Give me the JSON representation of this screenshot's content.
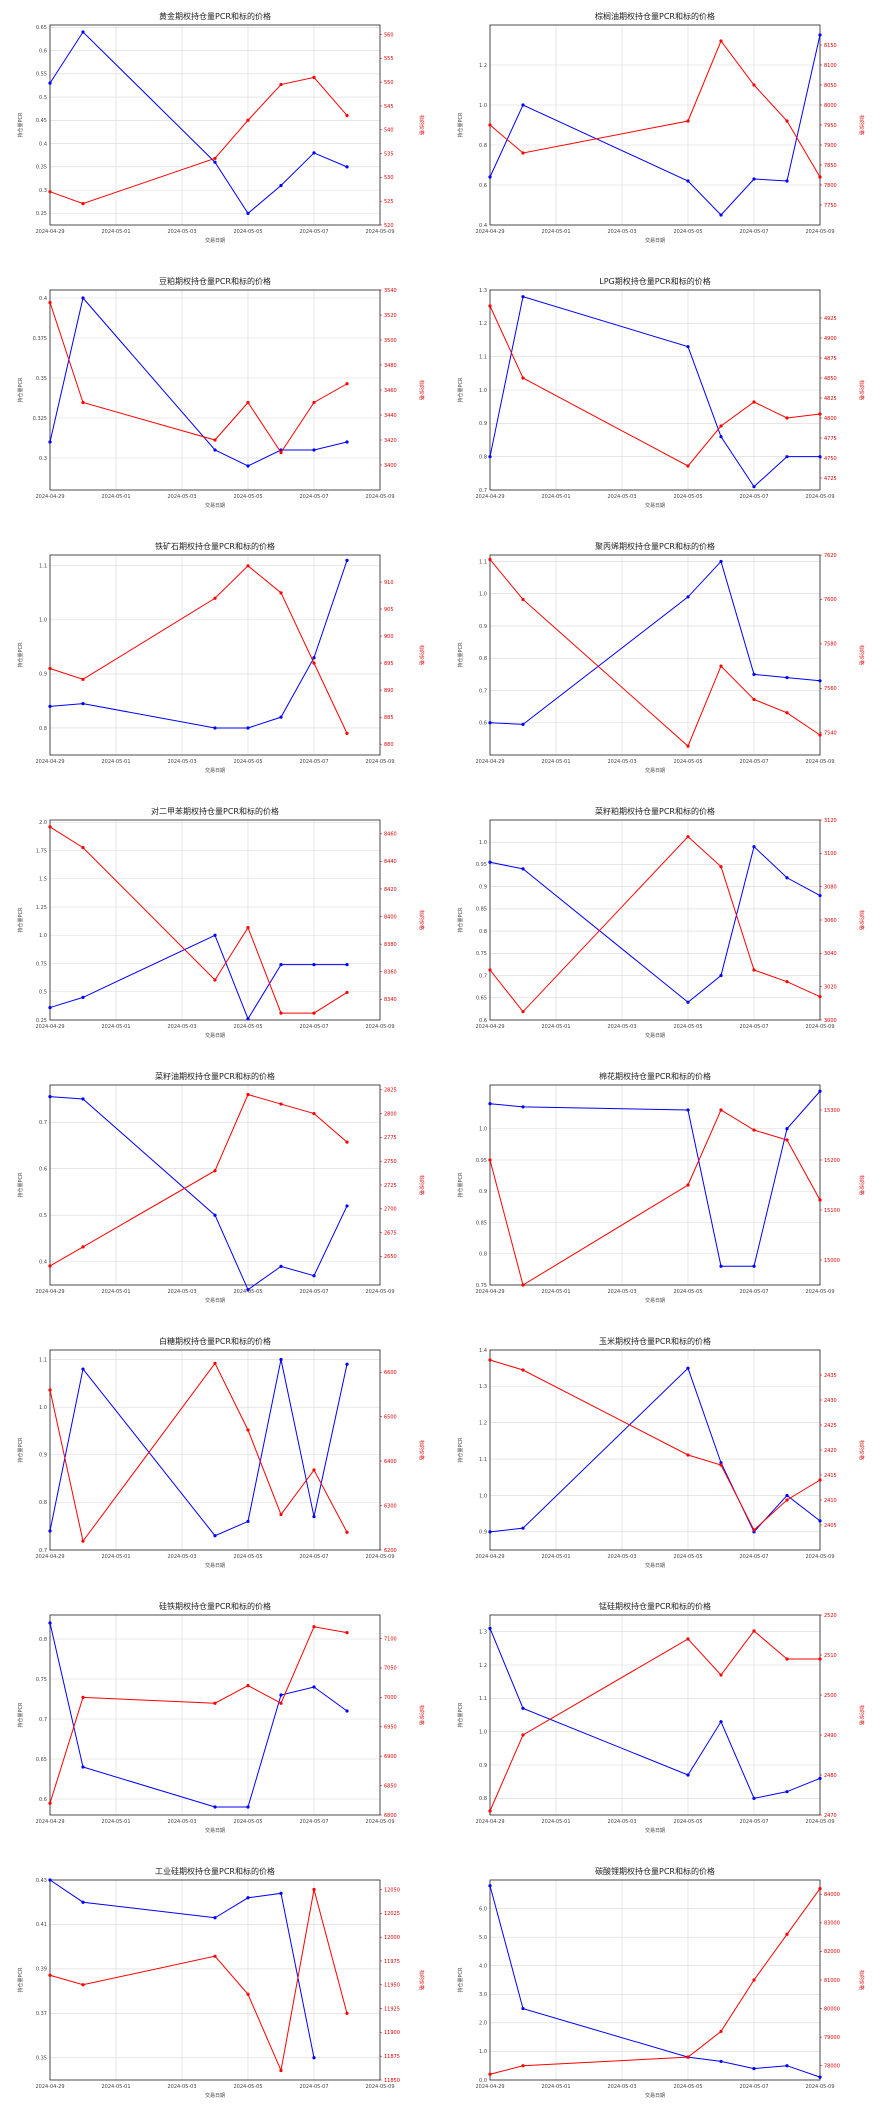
{
  "colors": {
    "left_series": "#0000ff",
    "right_series": "#ff0000",
    "grid": "#d8d8d8"
  },
  "x_ticks": [
    "2024-04-29",
    "2024-05-01",
    "2024-05-03",
    "2024-05-05",
    "2024-05-07",
    "2024-05-09"
  ],
  "chart_data": [
    {
      "type": "line",
      "title": "黄金期权持仓量PCR和标的价格",
      "xlabel": "交易日期",
      "ylabel": "持仓量PCR",
      "y2label": "标的价格",
      "x": [
        0,
        1,
        5,
        6,
        7,
        8,
        9
      ],
      "ylim": [
        0.225,
        0.655
      ],
      "yticks": [
        0.25,
        0.3,
        0.35,
        0.4,
        0.45,
        0.5,
        0.55,
        0.6,
        0.65
      ],
      "series_left": [
        0.53,
        0.64,
        0.36,
        0.25,
        0.31,
        0.38,
        0.35
      ],
      "y2lim": [
        520,
        562
      ],
      "y2ticks": [
        520,
        525,
        530,
        535,
        540,
        545,
        550,
        555,
        560
      ],
      "series_right": [
        527,
        524.5,
        534,
        542,
        549.5,
        551,
        543
      ]
    },
    {
      "type": "line",
      "title": "棕榈油期权持仓量PCR和标的价格",
      "xlabel": "交易日期",
      "ylabel": "持仓量PCR",
      "y2label": "标的价格",
      "x": [
        0,
        1,
        6,
        7,
        8,
        9,
        10
      ],
      "ylim": [
        0.4,
        1.4
      ],
      "yticks": [
        0.4,
        0.6,
        0.8,
        1.0,
        1.2
      ],
      "series_left": [
        0.64,
        1.0,
        0.62,
        0.45,
        0.63,
        0.62,
        1.35
      ],
      "y2lim": [
        7700,
        8200
      ],
      "y2ticks": [
        7750,
        7800,
        7850,
        7900,
        7950,
        8000,
        8050,
        8100,
        8150
      ],
      "series_right": [
        7950,
        7880,
        7960,
        8160,
        8050,
        7960,
        7820
      ]
    },
    {
      "type": "line",
      "title": "豆粕期权持仓量PCR和标的价格",
      "xlabel": "交易日期",
      "ylabel": "持仓量PCR",
      "y2label": "标的价格",
      "x": [
        0,
        1,
        5,
        6,
        7,
        8,
        9
      ],
      "ylim": [
        0.28,
        0.405
      ],
      "yticks": [
        0.3,
        0.325,
        0.35,
        0.375,
        0.4
      ],
      "series_left": [
        0.31,
        0.4,
        0.305,
        0.295,
        0.305,
        0.305,
        0.31
      ],
      "y2lim": [
        3380,
        3540
      ],
      "y2ticks": [
        3400,
        3420,
        3440,
        3460,
        3480,
        3500,
        3520,
        3540
      ],
      "series_right": [
        3530,
        3450,
        3420,
        3450,
        3410,
        3450,
        3465
      ]
    },
    {
      "type": "line",
      "title": "LPG期权持仓量PCR和标的价格",
      "xlabel": "交易日期",
      "ylabel": "持仓量PCR",
      "y2label": "标的价格",
      "x": [
        0,
        1,
        6,
        7,
        8,
        9,
        10
      ],
      "ylim": [
        0.7,
        1.3
      ],
      "yticks": [
        0.7,
        0.8,
        0.9,
        1.0,
        1.1,
        1.2,
        1.3
      ],
      "series_left": [
        0.8,
        1.28,
        1.13,
        0.86,
        0.71,
        0.8,
        0.8
      ],
      "y2lim": [
        4710,
        4960
      ],
      "y2ticks": [
        4725,
        4750,
        4775,
        4800,
        4825,
        4850,
        4875,
        4900,
        4925
      ],
      "series_right": [
        4940,
        4850,
        4740,
        4790,
        4820,
        4800,
        4805
      ]
    },
    {
      "type": "line",
      "title": "铁矿石期权持仓量PCR和标的价格",
      "xlabel": "交易日期",
      "ylabel": "持仓量PCR",
      "y2label": "标的价格",
      "x": [
        0,
        1,
        5,
        6,
        7,
        8,
        9
      ],
      "ylim": [
        0.75,
        1.12
      ],
      "yticks": [
        0.8,
        0.9,
        1.0,
        1.1
      ],
      "series_left": [
        0.84,
        0.845,
        0.8,
        0.8,
        0.82,
        0.93,
        1.11
      ],
      "y2lim": [
        878,
        915
      ],
      "y2ticks": [
        880,
        885,
        890,
        895,
        900,
        905,
        910
      ],
      "series_right": [
        894,
        892,
        907,
        913,
        908,
        895,
        882
      ]
    },
    {
      "type": "line",
      "title": "聚丙烯期权持仓量PCR和标的价格",
      "xlabel": "交易日期",
      "ylabel": "持仓量PCR",
      "y2label": "标的价格",
      "x": [
        0,
        1,
        6,
        7,
        8,
        9,
        10
      ],
      "ylim": [
        0.5,
        1.12
      ],
      "yticks": [
        0.6,
        0.7,
        0.8,
        0.9,
        1.0,
        1.1
      ],
      "series_left": [
        0.6,
        0.595,
        0.99,
        1.1,
        0.75,
        0.74,
        0.73
      ],
      "y2lim": [
        7530,
        7620
      ],
      "y2ticks": [
        7540,
        7560,
        7580,
        7600,
        7620
      ],
      "series_right": [
        7618,
        7600,
        7534,
        7570,
        7555,
        7549,
        7539
      ]
    },
    {
      "type": "line",
      "title": "对二甲苯期权持仓量PCR和标的价格",
      "xlabel": "交易日期",
      "ylabel": "持仓量PCR",
      "y2label": "标的价格",
      "x": [
        0,
        1,
        5,
        6,
        7,
        8,
        9
      ],
      "ylim": [
        0.25,
        2.02
      ],
      "yticks": [
        0.25,
        0.5,
        0.75,
        1.0,
        1.25,
        1.5,
        1.75,
        2.0
      ],
      "series_left": [
        0.36,
        0.45,
        1.0,
        0.26,
        0.74,
        0.74,
        0.74
      ],
      "y2lim": [
        8325,
        8470
      ],
      "y2ticks": [
        8340,
        8360,
        8380,
        8400,
        8420,
        8440,
        8460
      ],
      "series_right": [
        8465,
        8450,
        8354,
        8392,
        8330,
        8330,
        8345
      ]
    },
    {
      "type": "line",
      "title": "菜籽粕期权持仓量PCR和标的价格",
      "xlabel": "交易日期",
      "ylabel": "持仓量PCR",
      "y2label": "标的价格",
      "x": [
        0,
        1,
        6,
        7,
        8,
        9,
        10
      ],
      "ylim": [
        0.6,
        1.05
      ],
      "yticks": [
        0.6,
        0.65,
        0.7,
        0.75,
        0.8,
        0.85,
        0.9,
        0.95,
        1.0
      ],
      "series_left": [
        0.955,
        0.94,
        0.64,
        0.7,
        0.99,
        0.92,
        0.88
      ],
      "y2lim": [
        3000,
        3120
      ],
      "y2ticks": [
        3000,
        3020,
        3040,
        3060,
        3080,
        3100,
        3120
      ],
      "series_right": [
        3030,
        3005,
        3110,
        3092,
        3030,
        3023,
        3014
      ]
    },
    {
      "type": "line",
      "title": "菜籽油期权持仓量PCR和标的价格",
      "xlabel": "交易日期",
      "ylabel": "持仓量PCR",
      "y2label": "标的价格",
      "x": [
        0,
        1,
        5,
        6,
        7,
        8,
        9
      ],
      "ylim": [
        0.35,
        0.78
      ],
      "yticks": [
        0.4,
        0.5,
        0.6,
        0.7
      ],
      "series_left": [
        0.755,
        0.75,
        0.5,
        0.34,
        0.39,
        0.37,
        0.52
      ],
      "y2lim": [
        2620,
        2830
      ],
      "y2ticks": [
        2650,
        2675,
        2700,
        2725,
        2750,
        2775,
        2800,
        2825
      ],
      "series_right": [
        2640,
        2660,
        2740,
        2820,
        2810,
        2800,
        2770
      ]
    },
    {
      "type": "line",
      "title": "棉花期权持仓量PCR和标的价格",
      "xlabel": "交易日期",
      "ylabel": "持仓量PCR",
      "y2label": "标的价格",
      "x": [
        0,
        1,
        6,
        7,
        8,
        9,
        10
      ],
      "ylim": [
        0.75,
        1.07
      ],
      "yticks": [
        0.75,
        0.8,
        0.85,
        0.9,
        0.95,
        1.0
      ],
      "series_left": [
        1.04,
        1.035,
        1.03,
        0.78,
        0.78,
        1.0,
        1.06
      ],
      "y2lim": [
        14950,
        15350
      ],
      "y2ticks": [
        15000,
        15100,
        15200,
        15300
      ],
      "series_right": [
        15200,
        14950,
        15150,
        15300,
        15260,
        15240,
        15120
      ]
    },
    {
      "type": "line",
      "title": "白糖期权持仓量PCR和标的价格",
      "xlabel": "交易日期",
      "ylabel": "持仓量PCR",
      "y2label": "标的价格",
      "x": [
        0,
        1,
        5,
        6,
        7,
        8,
        9
      ],
      "ylim": [
        0.7,
        1.12
      ],
      "yticks": [
        0.7,
        0.8,
        0.9,
        1.0,
        1.1
      ],
      "series_left": [
        0.74,
        1.08,
        0.73,
        0.76,
        1.1,
        0.77,
        1.09
      ],
      "y2lim": [
        6200,
        6650
      ],
      "y2ticks": [
        6200,
        6300,
        6400,
        6500,
        6600
      ],
      "series_right": [
        6560,
        6220,
        6620,
        6470,
        6280,
        6380,
        6240
      ]
    },
    {
      "type": "line",
      "title": "玉米期权持仓量PCR和标的价格",
      "xlabel": "交易日期",
      "ylabel": "持仓量PCR",
      "y2label": "标的价格",
      "x": [
        0,
        1,
        6,
        7,
        8,
        9,
        10
      ],
      "ylim": [
        0.85,
        1.4
      ],
      "yticks": [
        0.9,
        1.0,
        1.1,
        1.2,
        1.3,
        1.4
      ],
      "series_left": [
        0.9,
        0.91,
        1.35,
        1.09,
        0.9,
        1.0,
        0.93
      ],
      "y2lim": [
        2400,
        2440
      ],
      "y2ticks": [
        2405,
        2410,
        2415,
        2420,
        2425,
        2430,
        2435
      ],
      "series_right": [
        2438,
        2436,
        2419,
        2417,
        2404,
        2410,
        2414
      ]
    },
    {
      "type": "line",
      "title": "硅铁期权持仓量PCR和标的价格",
      "xlabel": "交易日期",
      "ylabel": "持仓量PCR",
      "y2label": "标的价格",
      "x": [
        0,
        1,
        5,
        6,
        7,
        8,
        9
      ],
      "ylim": [
        0.58,
        0.83
      ],
      "yticks": [
        0.6,
        0.65,
        0.7,
        0.75,
        0.8
      ],
      "series_left": [
        0.82,
        0.64,
        0.59,
        0.59,
        0.73,
        0.74,
        0.71
      ],
      "y2lim": [
        6800,
        7140
      ],
      "y2ticks": [
        6800,
        6850,
        6900,
        6950,
        7000,
        7050,
        7100
      ],
      "series_right": [
        6820,
        7000,
        6990,
        7020,
        6990,
        7120,
        7110
      ]
    },
    {
      "type": "line",
      "title": "锰硅期权持仓量PCR和标的价格",
      "xlabel": "交易日期",
      "ylabel": "持仓量PCR",
      "y2label": "标的价格",
      "x": [
        0,
        1,
        6,
        7,
        8,
        9,
        10
      ],
      "ylim": [
        0.75,
        1.35
      ],
      "yticks": [
        0.8,
        0.9,
        1.0,
        1.1,
        1.2,
        1.3
      ],
      "series_left": [
        1.31,
        1.07,
        0.87,
        1.03,
        0.8,
        0.82,
        0.86
      ],
      "y2lim": [
        2470,
        2520
      ],
      "y2ticks": [
        2470,
        2480,
        2490,
        2500,
        2510,
        2520
      ],
      "series_right": [
        2471,
        2490,
        2514,
        2505,
        2516,
        2509,
        2509
      ]
    },
    {
      "type": "line",
      "title": "工业硅期权持仓量PCR和标的价格",
      "xlabel": "交易日期",
      "ylabel": "持仓量PCR",
      "y2label": "标的价格",
      "x": [
        0,
        1,
        5,
        6,
        7,
        8,
        9
      ],
      "ylim": [
        0.34,
        0.43
      ],
      "yticks": [
        0.35,
        0.37,
        0.39,
        0.41,
        0.43
      ],
      "series_left": [
        0.43,
        0.42,
        0.413,
        0.422,
        0.424,
        0.35,
        null
      ],
      "y2lim": [
        11850,
        12060
      ],
      "y2ticks": [
        11850,
        11875,
        11900,
        11925,
        11950,
        11975,
        12000,
        12025,
        12050
      ],
      "series_right": [
        11960,
        11950,
        11980,
        11940,
        11860,
        12050,
        11920
      ]
    },
    {
      "type": "line",
      "title": "碳酸锂期权持仓量PCR和标的价格",
      "xlabel": "交易日期",
      "ylabel": "持仓量PCR",
      "y2label": "标的价格",
      "x": [
        0,
        1,
        6,
        7,
        8,
        9,
        10
      ],
      "ylim": [
        0,
        7
      ],
      "yticks": [
        0,
        1,
        2,
        3,
        4,
        5,
        6
      ],
      "series_left": [
        6.8,
        2.5,
        0.8,
        0.65,
        0.4,
        0.5,
        0.1
      ],
      "y2lim": [
        77500,
        84500
      ],
      "y2ticks": [
        78000,
        79000,
        80000,
        81000,
        82000,
        83000,
        84000
      ],
      "series_right": [
        77700,
        78000,
        78300,
        79200,
        81000,
        82600,
        84200
      ]
    }
  ]
}
